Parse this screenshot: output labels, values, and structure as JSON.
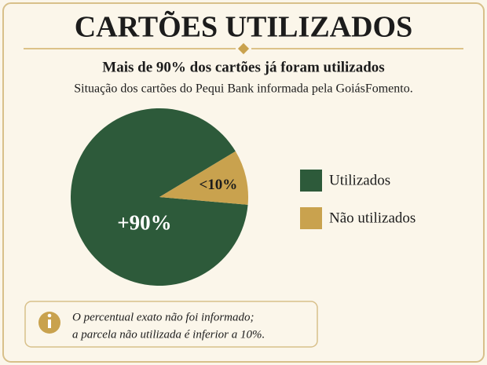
{
  "chart_data": {
    "type": "pie",
    "title": "CARTÕES UTILIZADOS",
    "subtitle": "Mais de 90% dos cartões já foram utilizados",
    "caption": "Situação dos cartões do Pequi Bank informada pela GoiásFomento.",
    "categories": [
      "Utilizados",
      "Não utilizados"
    ],
    "values": [
      90,
      10
    ],
    "value_labels": [
      "+90%",
      "<10%"
    ],
    "colors": [
      "#2d5a3a",
      "#c9a24e"
    ],
    "legend": "right",
    "annotations": [
      "O percentual exato não foi informado;",
      "a parcela não utilizada é inferior a 10%."
    ]
  }
}
